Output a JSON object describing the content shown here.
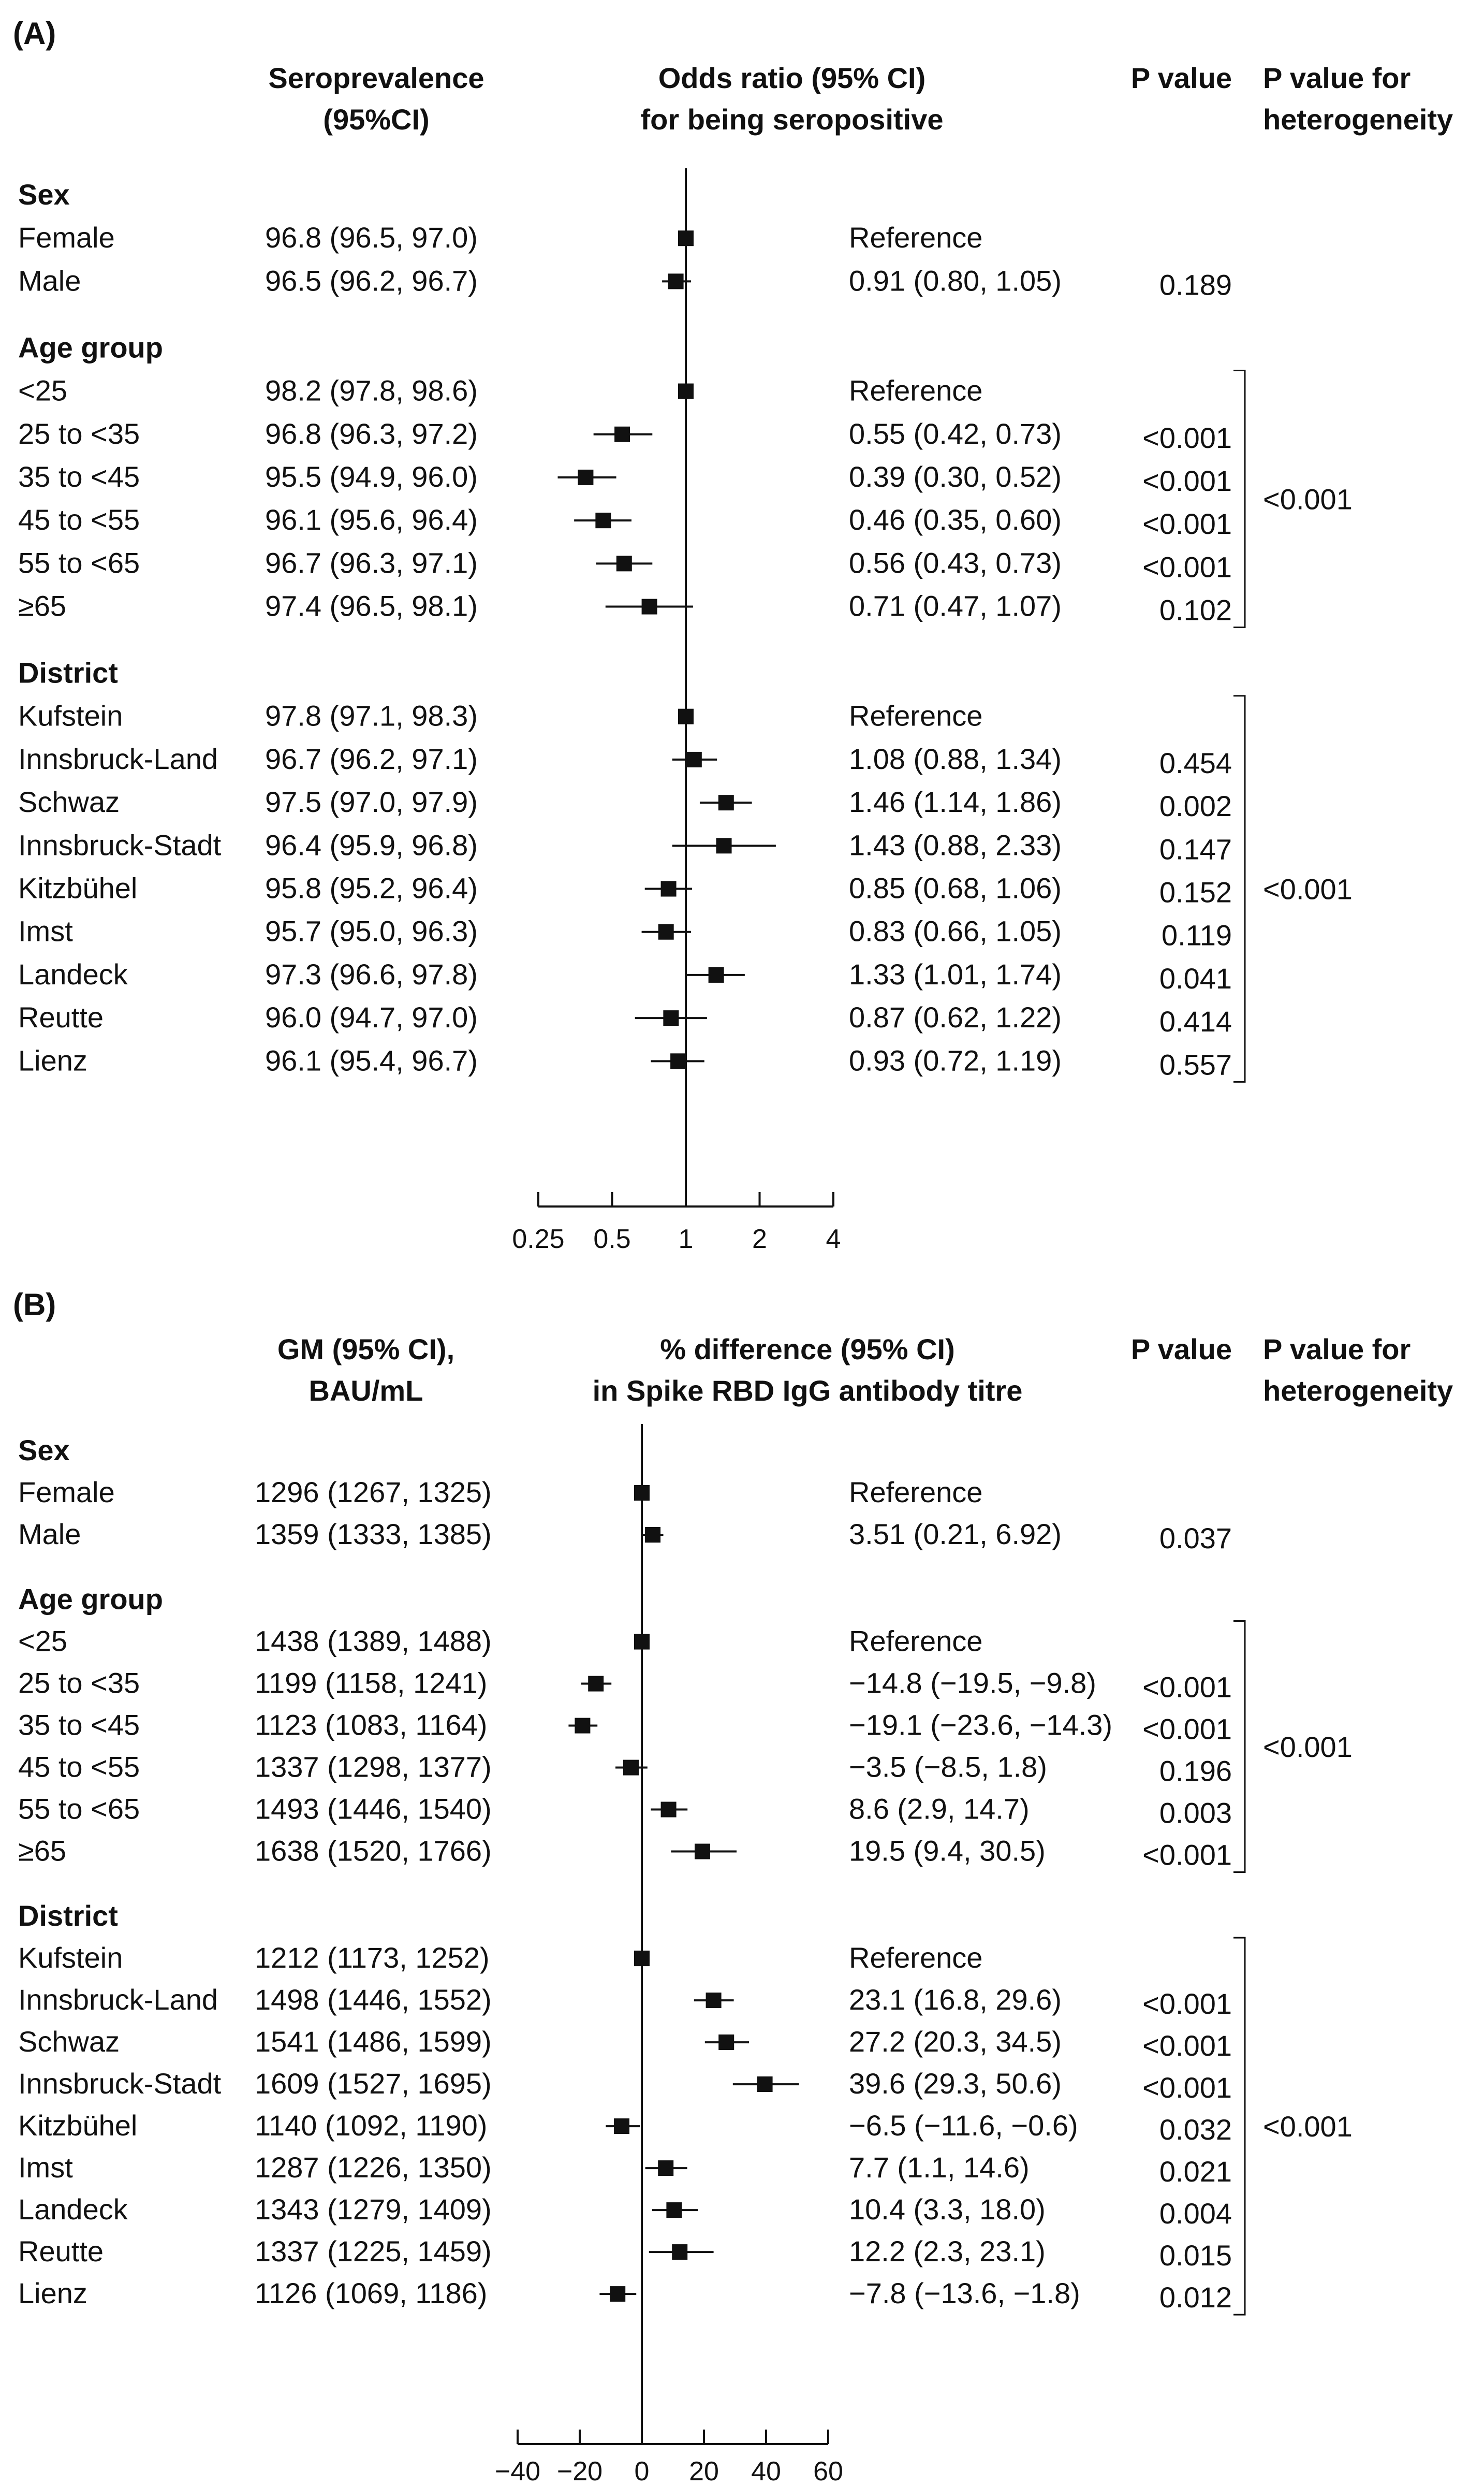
{
  "chart_data": [
    {
      "type": "forest",
      "panel_label": "(A)",
      "columns": {
        "estimate_header": [
          "Seroprevalence",
          "(95%CI)"
        ],
        "plot_header": [
          "Odds ratio (95% CI)",
          "for being seropositive"
        ],
        "p_header": "P value",
        "het_header": [
          "P value for",
          "heterogeneity"
        ]
      },
      "xscale": "log2",
      "xlim": [
        0.25,
        4
      ],
      "reference_line": 1,
      "ticks": [
        0.25,
        0.5,
        1,
        2,
        4
      ],
      "tick_labels": [
        "0.25",
        "0.5",
        "1",
        "2",
        "4"
      ],
      "groups": [
        {
          "name": "Sex",
          "p_heterogeneity": "",
          "rows": [
            {
              "label": "Female",
              "estimate": "96.8 (96.5, 97.0)",
              "effect_text": "Reference",
              "p": "",
              "point": 1,
              "lo": 1,
              "hi": 1
            },
            {
              "label": "Male",
              "estimate": "96.5 (96.2, 96.7)",
              "effect_text": "0.91 (0.80, 1.05)",
              "p": "0.189",
              "point": 0.91,
              "lo": 0.8,
              "hi": 1.05
            }
          ]
        },
        {
          "name": "Age group",
          "p_heterogeneity": "<0.001",
          "rows": [
            {
              "label": "<25",
              "estimate": "98.2 (97.8, 98.6)",
              "effect_text": "Reference",
              "p": "",
              "point": 1,
              "lo": 1,
              "hi": 1
            },
            {
              "label": "25 to <35",
              "estimate": "96.8 (96.3, 97.2)",
              "effect_text": "0.55 (0.42, 0.73)",
              "p": "<0.001",
              "point": 0.55,
              "lo": 0.42,
              "hi": 0.73
            },
            {
              "label": "35 to <45",
              "estimate": "95.5 (94.9, 96.0)",
              "effect_text": "0.39 (0.30, 0.52)",
              "p": "<0.001",
              "point": 0.39,
              "lo": 0.3,
              "hi": 0.52
            },
            {
              "label": "45 to <55",
              "estimate": "96.1 (95.6, 96.4)",
              "effect_text": "0.46 (0.35, 0.60)",
              "p": "<0.001",
              "point": 0.46,
              "lo": 0.35,
              "hi": 0.6
            },
            {
              "label": "55 to <65",
              "estimate": "96.7 (96.3, 97.1)",
              "effect_text": "0.56 (0.43, 0.73)",
              "p": "<0.001",
              "point": 0.56,
              "lo": 0.43,
              "hi": 0.73
            },
            {
              "label": "≥65",
              "estimate": "97.4 (96.5, 98.1)",
              "effect_text": "0.71 (0.47, 1.07)",
              "p": "0.102",
              "point": 0.71,
              "lo": 0.47,
              "hi": 1.07
            }
          ]
        },
        {
          "name": "District",
          "p_heterogeneity": "<0.001",
          "rows": [
            {
              "label": "Kufstein",
              "estimate": "97.8 (97.1, 98.3)",
              "effect_text": "Reference",
              "p": "",
              "point": 1,
              "lo": 1,
              "hi": 1
            },
            {
              "label": "Innsbruck-Land",
              "estimate": "96.7 (96.2, 97.1)",
              "effect_text": "1.08 (0.88, 1.34)",
              "p": "0.454",
              "point": 1.08,
              "lo": 0.88,
              "hi": 1.34
            },
            {
              "label": "Schwaz",
              "estimate": "97.5 (97.0, 97.9)",
              "effect_text": "1.46 (1.14, 1.86)",
              "p": "0.002",
              "point": 1.46,
              "lo": 1.14,
              "hi": 1.86
            },
            {
              "label": "Innsbruck-Stadt",
              "estimate": "96.4 (95.9, 96.8)",
              "effect_text": "1.43 (0.88, 2.33)",
              "p": "0.147",
              "point": 1.43,
              "lo": 0.88,
              "hi": 2.33
            },
            {
              "label": "Kitzbühel",
              "estimate": "95.8 (95.2, 96.4)",
              "effect_text": "0.85 (0.68, 1.06)",
              "p": "0.152",
              "point": 0.85,
              "lo": 0.68,
              "hi": 1.06
            },
            {
              "label": "Imst",
              "estimate": "95.7 (95.0, 96.3)",
              "effect_text": "0.83 (0.66, 1.05)",
              "p": "0.119",
              "point": 0.83,
              "lo": 0.66,
              "hi": 1.05
            },
            {
              "label": "Landeck",
              "estimate": "97.3 (96.6, 97.8)",
              "effect_text": "1.33 (1.01, 1.74)",
              "p": "0.041",
              "point": 1.33,
              "lo": 1.01,
              "hi": 1.74
            },
            {
              "label": "Reutte",
              "estimate": "96.0 (94.7, 97.0)",
              "effect_text": "0.87 (0.62, 1.22)",
              "p": "0.414",
              "point": 0.87,
              "lo": 0.62,
              "hi": 1.22
            },
            {
              "label": "Lienz",
              "estimate": "96.1 (95.4, 96.7)",
              "effect_text": "0.93 (0.72, 1.19)",
              "p": "0.557",
              "point": 0.93,
              "lo": 0.72,
              "hi": 1.19
            }
          ]
        }
      ]
    },
    {
      "type": "forest",
      "panel_label": "(B)",
      "columns": {
        "estimate_header": [
          "GM (95% CI),",
          "BAU/mL"
        ],
        "plot_header": [
          "% difference (95% CI)",
          "in Spike RBD IgG antibody titre"
        ],
        "p_header": "P value",
        "het_header": [
          "P value for",
          "heterogeneity"
        ]
      },
      "xscale": "linear",
      "xlim": [
        -40,
        60
      ],
      "reference_line": 0,
      "ticks": [
        -40,
        -20,
        0,
        20,
        40,
        60
      ],
      "tick_labels": [
        "−40",
        "−20",
        "0",
        "20",
        "40",
        "60"
      ],
      "groups": [
        {
          "name": "Sex",
          "p_heterogeneity": "",
          "rows": [
            {
              "label": "Female",
              "estimate": "1296 (1267, 1325)",
              "effect_text": "Reference",
              "p": "",
              "point": 0,
              "lo": 0,
              "hi": 0
            },
            {
              "label": "Male",
              "estimate": "1359 (1333, 1385)",
              "effect_text": "3.51 (0.21, 6.92)",
              "p": "0.037",
              "point": 3.51,
              "lo": 0.21,
              "hi": 6.92
            }
          ]
        },
        {
          "name": "Age group",
          "p_heterogeneity": "<0.001",
          "rows": [
            {
              "label": "<25",
              "estimate": "1438 (1389, 1488)",
              "effect_text": "Reference",
              "p": "",
              "point": 0,
              "lo": 0,
              "hi": 0
            },
            {
              "label": "25 to <35",
              "estimate": "1199 (1158, 1241)",
              "effect_text": "−14.8 (−19.5, −9.8)",
              "p": "<0.001",
              "point": -14.8,
              "lo": -19.5,
              "hi": -9.8
            },
            {
              "label": "35 to <45",
              "estimate": "1123 (1083, 1164)",
              "effect_text": "−19.1 (−23.6, −14.3)",
              "p": "<0.001",
              "point": -19.1,
              "lo": -23.6,
              "hi": -14.3
            },
            {
              "label": "45 to <55",
              "estimate": "1337 (1298, 1377)",
              "effect_text": "−3.5 (−8.5, 1.8)",
              "p": "0.196",
              "point": -3.5,
              "lo": -8.5,
              "hi": 1.8
            },
            {
              "label": "55 to <65",
              "estimate": "1493 (1446, 1540)",
              "effect_text": "8.6 (2.9, 14.7)",
              "p": "0.003",
              "point": 8.6,
              "lo": 2.9,
              "hi": 14.7
            },
            {
              "label": "≥65",
              "estimate": "1638 (1520, 1766)",
              "effect_text": "19.5 (9.4, 30.5)",
              "p": "<0.001",
              "point": 19.5,
              "lo": 9.4,
              "hi": 30.5
            }
          ]
        },
        {
          "name": "District",
          "p_heterogeneity": "<0.001",
          "rows": [
            {
              "label": "Kufstein",
              "estimate": "1212 (1173, 1252)",
              "effect_text": "Reference",
              "p": "",
              "point": 0,
              "lo": 0,
              "hi": 0
            },
            {
              "label": "Innsbruck-Land",
              "estimate": "1498 (1446, 1552)",
              "effect_text": "23.1 (16.8, 29.6)",
              "p": "<0.001",
              "point": 23.1,
              "lo": 16.8,
              "hi": 29.6
            },
            {
              "label": "Schwaz",
              "estimate": "1541 (1486, 1599)",
              "effect_text": "27.2 (20.3, 34.5)",
              "p": "<0.001",
              "point": 27.2,
              "lo": 20.3,
              "hi": 34.5
            },
            {
              "label": "Innsbruck-Stadt",
              "estimate": "1609 (1527, 1695)",
              "effect_text": "39.6 (29.3, 50.6)",
              "p": "<0.001",
              "point": 39.6,
              "lo": 29.3,
              "hi": 50.6
            },
            {
              "label": "Kitzbühel",
              "estimate": "1140 (1092, 1190)",
              "effect_text": "−6.5 (−11.6, −0.6)",
              "p": "0.032",
              "point": -6.5,
              "lo": -11.6,
              "hi": -0.6
            },
            {
              "label": "Imst",
              "estimate": "1287 (1226, 1350)",
              "effect_text": "7.7 (1.1, 14.6)",
              "p": "0.021",
              "point": 7.7,
              "lo": 1.1,
              "hi": 14.6
            },
            {
              "label": "Landeck",
              "estimate": "1343 (1279, 1409)",
              "effect_text": "10.4 (3.3, 18.0)",
              "p": "0.004",
              "point": 10.4,
              "lo": 3.3,
              "hi": 18.0
            },
            {
              "label": "Reutte",
              "estimate": "1337 (1225, 1459)",
              "effect_text": "12.2 (2.3, 23.1)",
              "p": "0.015",
              "point": 12.2,
              "lo": 2.3,
              "hi": 23.1
            },
            {
              "label": "Lienz",
              "estimate": "1126 (1069, 1186)",
              "effect_text": "−7.8 (−13.6, −1.8)",
              "p": "0.012",
              "point": -7.8,
              "lo": -13.6,
              "hi": -1.8
            }
          ]
        }
      ]
    }
  ]
}
